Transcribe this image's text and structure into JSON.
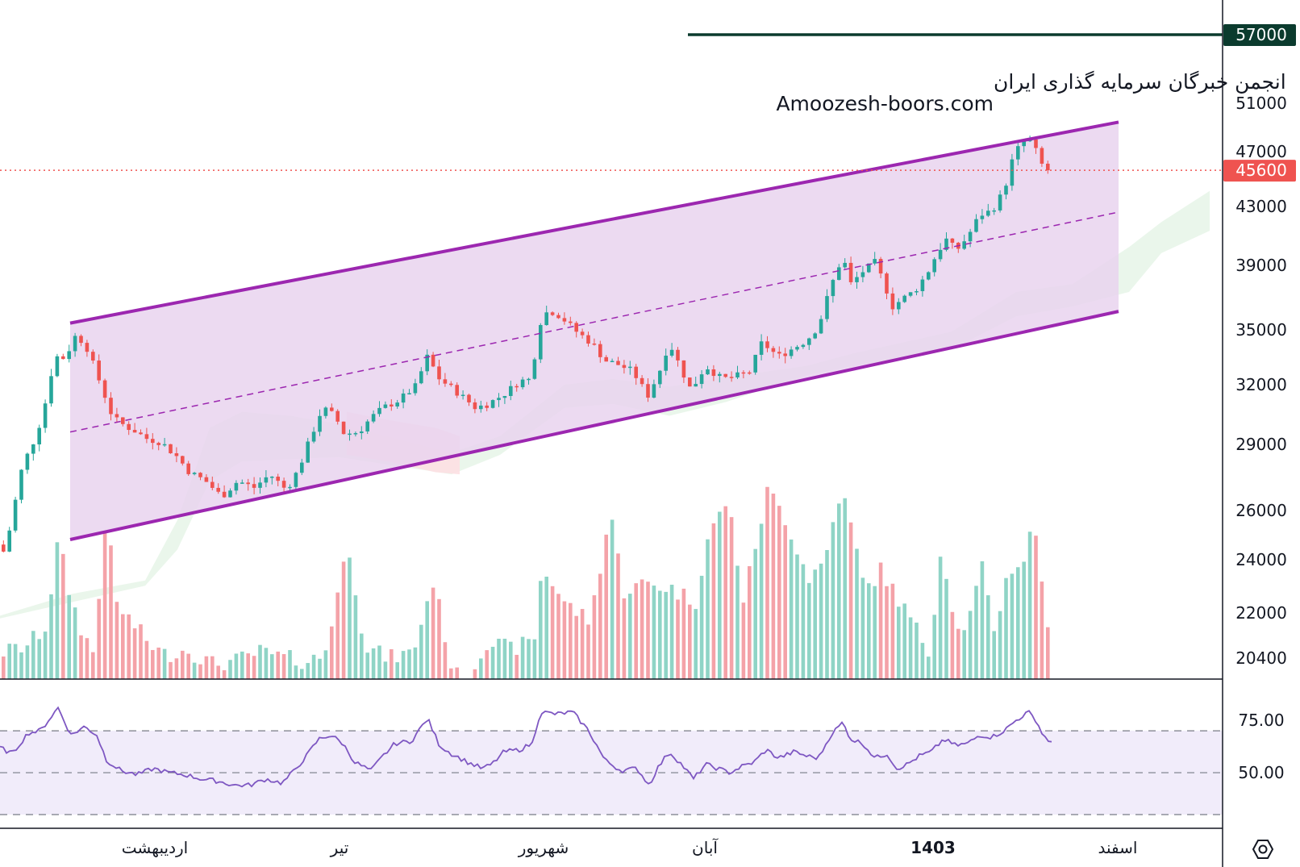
{
  "watermark": {
    "line1": "انجمن خبرگان سرمایه گذاری ایران",
    "line2": "Amoozesh-boors.com"
  },
  "colors": {
    "up": "#26a69a",
    "down": "#ef5350",
    "upVol": "#8fd4c6",
    "downVol": "#f4a2a8",
    "channelLine": "#9c27b0",
    "channelFill": "#e9d3ef",
    "rsi": "#7e57c2",
    "rsiBand": "#f1ecfa",
    "target": "#0b3b2e",
    "lastPrice": "#ef5350"
  },
  "priceAxis": {
    "ticks": [
      "51000",
      "47000",
      "43000",
      "39000",
      "35000",
      "32000",
      "29000",
      "26000",
      "24000",
      "22000",
      "20400"
    ]
  },
  "rsiAxis": {
    "ticks": [
      "75.00",
      "50.00"
    ]
  },
  "badges": {
    "target": "57000",
    "last": "45600"
  },
  "timeAxis": {
    "labels": [
      "اردیبهشت",
      "تیر",
      "شهریور",
      "آبان",
      "1403",
      "اسفند"
    ]
  },
  "chart_data": {
    "type": "candlestick",
    "indicators": [
      "volume",
      "ichimoku_cloud",
      "RSI"
    ],
    "price_range": [
      19600,
      58500
    ],
    "rsi_range": [
      25,
      92
    ],
    "last_price": 45600,
    "target_level": 57000,
    "channel": {
      "upper": [
        [
          87,
          35400
        ],
        [
          1387,
          49400
        ]
      ],
      "lower": [
        [
          87,
          24800
        ],
        [
          1387,
          36100
        ]
      ],
      "mid": [
        [
          87,
          29600
        ],
        [
          1387,
          42600
        ]
      ]
    },
    "anchors": [
      [
        2,
        24600
      ],
      [
        10,
        24300
      ],
      [
        20,
        25600
      ],
      [
        30,
        27600
      ],
      [
        40,
        28600
      ],
      [
        50,
        29400
      ],
      [
        60,
        30800
      ],
      [
        68,
        32500
      ],
      [
        80,
        34000
      ],
      [
        86,
        33000
      ],
      [
        95,
        34700
      ],
      [
        110,
        34300
      ],
      [
        130,
        32000
      ],
      [
        145,
        30300
      ],
      [
        160,
        29900
      ],
      [
        175,
        29600
      ],
      [
        185,
        29300
      ],
      [
        205,
        29100
      ],
      [
        225,
        28400
      ],
      [
        240,
        27700
      ],
      [
        260,
        27300
      ],
      [
        280,
        26600
      ],
      [
        300,
        27300
      ],
      [
        320,
        27000
      ],
      [
        340,
        27600
      ],
      [
        360,
        26900
      ],
      [
        375,
        27800
      ],
      [
        390,
        29300
      ],
      [
        405,
        30800
      ],
      [
        420,
        30400
      ],
      [
        432,
        29500
      ],
      [
        450,
        29600
      ],
      [
        465,
        30300
      ],
      [
        480,
        30800
      ],
      [
        500,
        31200
      ],
      [
        520,
        31900
      ],
      [
        535,
        33500
      ],
      [
        550,
        32300
      ],
      [
        575,
        31500
      ],
      [
        595,
        30800
      ],
      [
        610,
        31000
      ],
      [
        630,
        31500
      ],
      [
        650,
        32200
      ],
      [
        665,
        32300
      ],
      [
        672,
        35200
      ],
      [
        685,
        36200
      ],
      [
        700,
        35800
      ],
      [
        720,
        34900
      ],
      [
        740,
        34200
      ],
      [
        755,
        33300
      ],
      [
        770,
        33100
      ],
      [
        790,
        32700
      ],
      [
        808,
        31400
      ],
      [
        822,
        32600
      ],
      [
        835,
        34300
      ],
      [
        850,
        32800
      ],
      [
        862,
        31700
      ],
      [
        880,
        33000
      ],
      [
        900,
        32300
      ],
      [
        915,
        32400
      ],
      [
        935,
        32700
      ],
      [
        950,
        34300
      ],
      [
        970,
        33500
      ],
      [
        990,
        34000
      ],
      [
        1005,
        34400
      ],
      [
        1020,
        35200
      ],
      [
        1035,
        37600
      ],
      [
        1050,
        39600
      ],
      [
        1060,
        37800
      ],
      [
        1075,
        38600
      ],
      [
        1090,
        39200
      ],
      [
        1100,
        38000
      ],
      [
        1112,
        36400
      ],
      [
        1125,
        36900
      ],
      [
        1140,
        37400
      ],
      [
        1155,
        38500
      ],
      [
        1168,
        39900
      ],
      [
        1180,
        40800
      ],
      [
        1190,
        39900
      ],
      [
        1205,
        40900
      ],
      [
        1220,
        42400
      ],
      [
        1235,
        42700
      ],
      [
        1250,
        44100
      ],
      [
        1262,
        46700
      ],
      [
        1270,
        47500
      ],
      [
        1280,
        48100
      ],
      [
        1290,
        47000
      ],
      [
        1300,
        45600
      ]
    ],
    "volume_anchors": [
      [
        0,
        20600
      ],
      [
        30,
        20800
      ],
      [
        55,
        21500
      ],
      [
        70,
        24800
      ],
      [
        85,
        22600
      ],
      [
        100,
        21300
      ],
      [
        115,
        20500
      ],
      [
        130,
        26200
      ],
      [
        140,
        22400
      ],
      [
        160,
        21700
      ],
      [
        180,
        21000
      ],
      [
        200,
        20500
      ],
      [
        230,
        20700
      ],
      [
        260,
        20200
      ],
      [
        290,
        20300
      ],
      [
        320,
        20600
      ],
      [
        350,
        20400
      ],
      [
        380,
        20300
      ],
      [
        400,
        20500
      ],
      [
        430,
        24600
      ],
      [
        450,
        20800
      ],
      [
        480,
        20400
      ],
      [
        510,
        20600
      ],
      [
        535,
        23200
      ],
      [
        560,
        19800
      ],
      [
        580,
        19800
      ],
      [
        600,
        21000
      ],
      [
        630,
        20700
      ],
      [
        660,
        21000
      ],
      [
        670,
        23700
      ],
      [
        700,
        22300
      ],
      [
        730,
        21700
      ],
      [
        755,
        26000
      ],
      [
        770,
        22800
      ],
      [
        800,
        23100
      ],
      [
        830,
        22900
      ],
      [
        860,
        22400
      ],
      [
        875,
        24800
      ],
      [
        900,
        26500
      ],
      [
        920,
        22400
      ],
      [
        950,
        26900
      ],
      [
        970,
        25800
      ],
      [
        1000,
        23300
      ],
      [
        1020,
        23900
      ],
      [
        1040,
        26900
      ],
      [
        1050,
        25800
      ],
      [
        1070,
        22800
      ],
      [
        1090,
        23600
      ],
      [
        1110,
        22600
      ],
      [
        1130,
        21600
      ],
      [
        1150,
        20600
      ],
      [
        1165,
        24500
      ],
      [
        1185,
        21300
      ],
      [
        1200,
        21800
      ],
      [
        1215,
        23700
      ],
      [
        1230,
        21400
      ],
      [
        1250,
        23700
      ],
      [
        1265,
        23800
      ],
      [
        1280,
        25500
      ],
      [
        1290,
        23300
      ],
      [
        1300,
        20300
      ]
    ],
    "rsi_anchors": [
      [
        0,
        62
      ],
      [
        15,
        59
      ],
      [
        35,
        69
      ],
      [
        50,
        70
      ],
      [
        72,
        81
      ],
      [
        88,
        68
      ],
      [
        105,
        72
      ],
      [
        120,
        68
      ],
      [
        132,
        56
      ],
      [
        150,
        51
      ],
      [
        170,
        49
      ],
      [
        190,
        52
      ],
      [
        210,
        50
      ],
      [
        230,
        49
      ],
      [
        250,
        47
      ],
      [
        270,
        46
      ],
      [
        290,
        44
      ],
      [
        310,
        44
      ],
      [
        330,
        47
      ],
      [
        350,
        45
      ],
      [
        365,
        51
      ],
      [
        380,
        58
      ],
      [
        395,
        66
      ],
      [
        410,
        68
      ],
      [
        425,
        64
      ],
      [
        440,
        55
      ],
      [
        460,
        51
      ],
      [
        475,
        58
      ],
      [
        490,
        64
      ],
      [
        510,
        65
      ],
      [
        530,
        76
      ],
      [
        545,
        63
      ],
      [
        560,
        59
      ],
      [
        580,
        55
      ],
      [
        598,
        52
      ],
      [
        610,
        54
      ],
      [
        625,
        60
      ],
      [
        645,
        61
      ],
      [
        660,
        64
      ],
      [
        670,
        79
      ],
      [
        690,
        78
      ],
      [
        710,
        79
      ],
      [
        730,
        70
      ],
      [
        750,
        56
      ],
      [
        770,
        51
      ],
      [
        790,
        52
      ],
      [
        805,
        44
      ],
      [
        815,
        52
      ],
      [
        830,
        60
      ],
      [
        845,
        54
      ],
      [
        860,
        47
      ],
      [
        875,
        54
      ],
      [
        890,
        52
      ],
      [
        905,
        50
      ],
      [
        920,
        53
      ],
      [
        935,
        55
      ],
      [
        950,
        61
      ],
      [
        965,
        57
      ],
      [
        985,
        60
      ],
      [
        1000,
        58
      ],
      [
        1015,
        57
      ],
      [
        1030,
        68
      ],
      [
        1045,
        74
      ],
      [
        1055,
        66
      ],
      [
        1070,
        64
      ],
      [
        1085,
        57
      ],
      [
        1100,
        59
      ],
      [
        1112,
        52
      ],
      [
        1125,
        54
      ],
      [
        1140,
        58
      ],
      [
        1155,
        60
      ],
      [
        1170,
        66
      ],
      [
        1185,
        63
      ],
      [
        1200,
        64
      ],
      [
        1215,
        68
      ],
      [
        1230,
        67
      ],
      [
        1245,
        70
      ],
      [
        1260,
        75
      ],
      [
        1275,
        79
      ],
      [
        1285,
        75
      ],
      [
        1293,
        68
      ],
      [
        1305,
        64
      ]
    ]
  }
}
